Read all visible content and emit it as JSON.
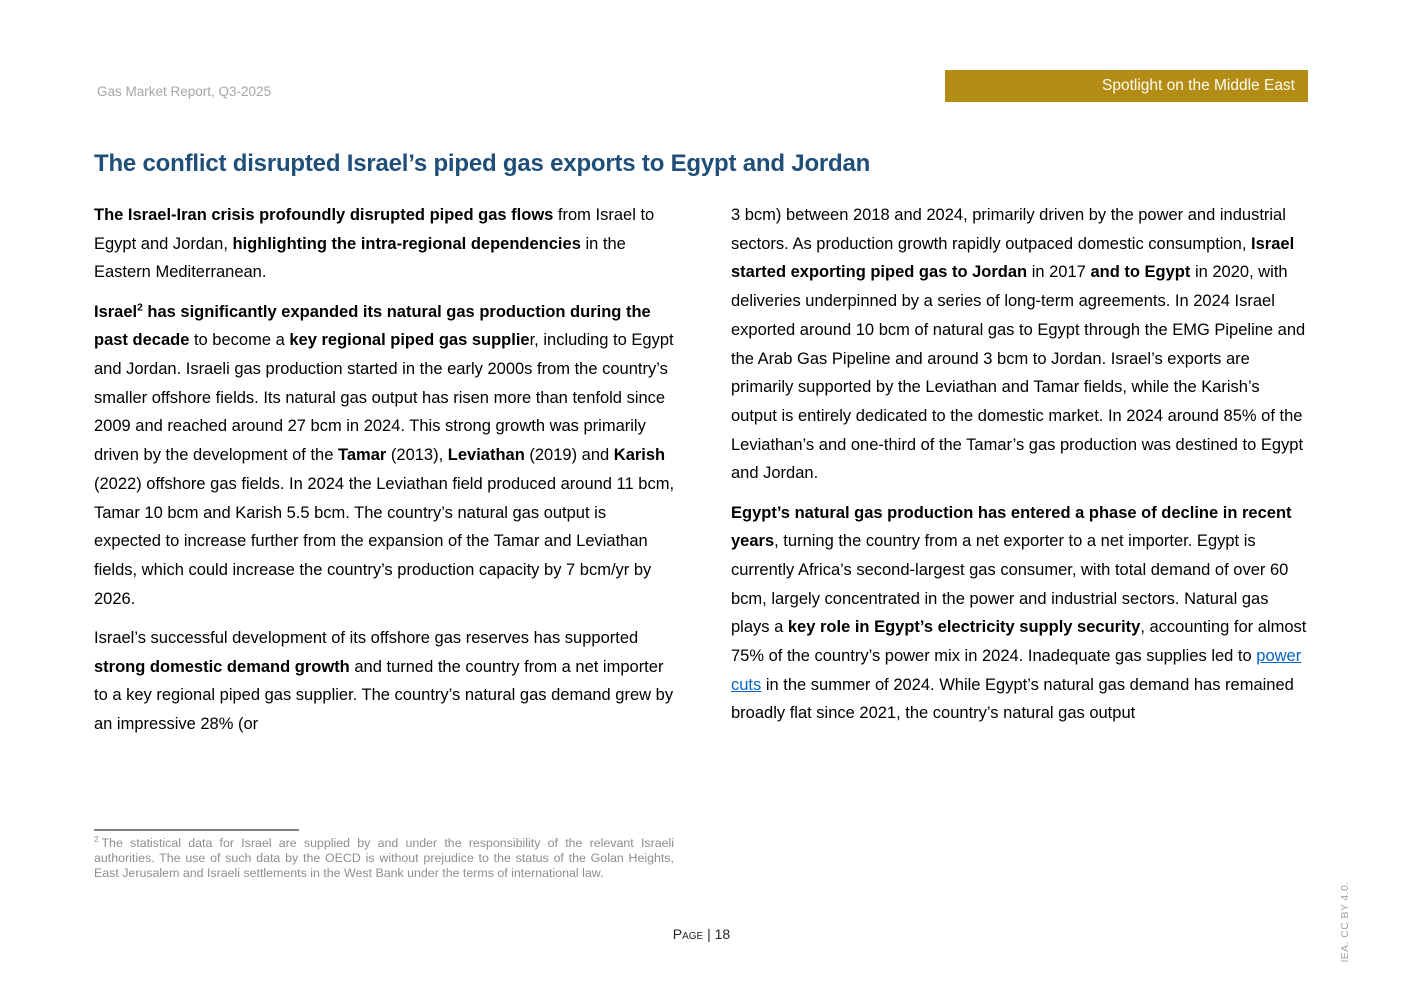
{
  "header": {
    "report_label": "Gas Market Report, Q3-2025",
    "banner_label": "Spotlight on the Middle East"
  },
  "title": "The conflict disrupted Israel’s piped gas exports to Egypt and Jordan",
  "colors": {
    "accent_blue": "#1f4e79",
    "banner_gold": "#b28c14",
    "link_blue": "#0563c1"
  },
  "columns": {
    "left": [
      {
        "segments": [
          {
            "text": "The Israel-Iran crisis profoundly disrupted piped gas flows",
            "bold": true
          },
          {
            "text": " from Israel to Egypt and Jordan, "
          },
          {
            "text": "highlighting the intra-regional dependencies",
            "bold": true
          },
          {
            "text": " in the Eastern Mediterranean."
          }
        ]
      },
      {
        "segments": [
          {
            "text": "Israel",
            "bold": true
          },
          {
            "text": "2",
            "bold": true,
            "sup": true
          },
          {
            "text": " has significantly expanded its natural gas production during the past decade",
            "bold": true
          },
          {
            "text": " to become a "
          },
          {
            "text": "key regional piped gas supplie",
            "bold": true
          },
          {
            "text": "r, including to Egypt and Jordan. Israeli gas production started in the early 2000s from the country’s smaller offshore fields. Its natural gas output has risen more than tenfold since 2009 and reached around 27 bcm in 2024. This strong growth was primarily driven by the development of the "
          },
          {
            "text": "Tamar",
            "bold": true
          },
          {
            "text": " (2013), "
          },
          {
            "text": "Leviathan",
            "bold": true
          },
          {
            "text": " (2019) and "
          },
          {
            "text": "Karish",
            "bold": true
          },
          {
            "text": " (2022) offshore gas fields. In 2024 the Leviathan field produced around 11 bcm, Tamar 10 bcm and Karish 5.5 bcm. The country’s natural gas output is expected to increase further from the expansion of the Tamar and Leviathan fields, which could increase the country’s production capacity by 7 bcm/yr by 2026."
          }
        ]
      },
      {
        "segments": [
          {
            "text": "Israel’s successful development of its offshore gas reserves has supported "
          },
          {
            "text": "strong domestic demand growth",
            "bold": true
          },
          {
            "text": " and turned the country from a net importer to a key regional piped gas supplier. The country’s natural gas demand grew by an impressive 28% (or"
          }
        ]
      }
    ],
    "right": [
      {
        "segments": [
          {
            "text": "3 bcm) between 2018 and 2024, primarily driven by the power and industrial sectors. As production growth rapidly outpaced domestic consumption, "
          },
          {
            "text": "Israel started exporting piped gas to Jordan",
            "bold": true
          },
          {
            "text": " in 2017 "
          },
          {
            "text": "and to Egypt",
            "bold": true
          },
          {
            "text": " in 2020, with deliveries underpinned by a series of long-term agreements. In 2024 Israel exported around 10 bcm of natural gas to Egypt through the EMG Pipeline and the Arab Gas Pipeline and around 3 bcm to Jordan. Israel’s exports are primarily supported by the Leviathan and Tamar fields, while the Karish’s output is entirely dedicated to the domestic market. In 2024 around 85% of the Leviathan’s and one-third of the Tamar’s gas production was destined to Egypt and Jordan."
          }
        ]
      },
      {
        "segments": [
          {
            "text": "Egypt’s natural gas production has entered a phase of decline in recent years",
            "bold": true
          },
          {
            "text": ", turning the country from a net exporter to a net importer. Egypt is currently Africa’s second-largest gas consumer, with total demand of over 60 bcm, largely concentrated in the power and industrial sectors. Natural gas plays a "
          },
          {
            "text": "key role in Egypt’s electricity supply security",
            "bold": true
          },
          {
            "text": ", accounting for almost 75% of the country’s power mix in 2024. Inadequate gas supplies led to "
          },
          {
            "text": "power cuts",
            "link": true
          },
          {
            "text": " in the summer of 2024. While Egypt’s natural gas demand has remained broadly flat since 2021, the country’s natural gas output"
          }
        ]
      }
    ]
  },
  "footnote": {
    "marker": "2",
    "text": "The statistical data for Israel are supplied by and under the responsibility of the relevant Israeli authorities. The use of such data by the OECD is without prejudice to the status of the Golan Heights, East Jerusalem and Israeli settlements in the West Bank under the terms of international law."
  },
  "footer": {
    "page_label": "Page | 18",
    "side_label": "IEA. CC BY 4.0."
  }
}
